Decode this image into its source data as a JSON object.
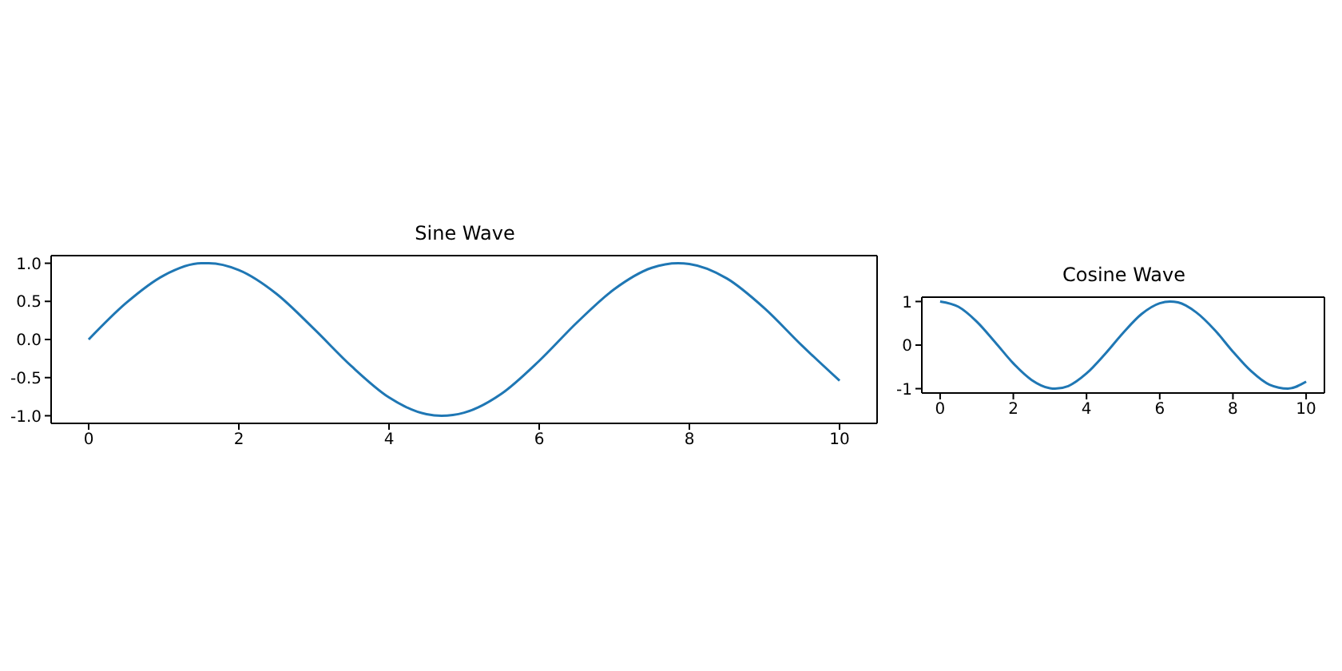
{
  "chart_data": [
    {
      "type": "line",
      "title": "Sine Wave",
      "x": [
        0,
        0.5,
        1,
        1.5,
        1.6,
        2,
        2.5,
        3,
        3.5,
        4,
        4.5,
        4.7,
        5,
        5.5,
        6,
        6.5,
        7,
        7.5,
        7.85,
        8,
        8.5,
        9,
        9.5,
        10
      ],
      "series": [
        {
          "color": "#1f77b4",
          "values": [
            0,
            0.48,
            0.84,
            1.0,
            1.0,
            0.91,
            0.6,
            0.14,
            -0.35,
            -0.76,
            -0.98,
            -1.0,
            -0.96,
            -0.71,
            -0.28,
            0.22,
            0.66,
            0.94,
            1.0,
            0.99,
            0.8,
            0.41,
            -0.08,
            -0.54
          ]
        }
      ],
      "xlim": [
        -0.5,
        10.5
      ],
      "xticks": [
        0,
        2,
        4,
        6,
        8,
        10
      ],
      "ylim": [
        -1.1,
        1.1
      ],
      "yticks": [
        {
          "value": -1,
          "label": "-1.0"
        },
        -0.5,
        {
          "value": 0,
          "label": "0.0"
        },
        0.5,
        {
          "value": 1,
          "label": "1.0"
        }
      ]
    },
    {
      "type": "line",
      "title": "Cosine Wave",
      "x": [
        0,
        0.5,
        1,
        1.5,
        2,
        2.5,
        3,
        3.14,
        3.5,
        4,
        4.5,
        5,
        5.5,
        6,
        6.28,
        6.5,
        7,
        7.5,
        8,
        8.5,
        9,
        9.5,
        10
      ],
      "series": [
        {
          "color": "#1f77b4",
          "values": [
            1,
            0.88,
            0.54,
            0.07,
            -0.42,
            -0.8,
            -0.99,
            -1.0,
            -0.94,
            -0.65,
            -0.21,
            0.28,
            0.71,
            0.96,
            1.0,
            0.98,
            0.75,
            0.35,
            -0.15,
            -0.6,
            -0.91,
            -1.0,
            -0.84
          ]
        }
      ],
      "xlim": [
        -0.5,
        10.5
      ],
      "xticks": [
        0,
        2,
        4,
        6,
        8,
        10
      ],
      "ylim": [
        -1.1,
        1.1
      ],
      "yticks": [
        -1,
        0,
        1
      ]
    }
  ]
}
